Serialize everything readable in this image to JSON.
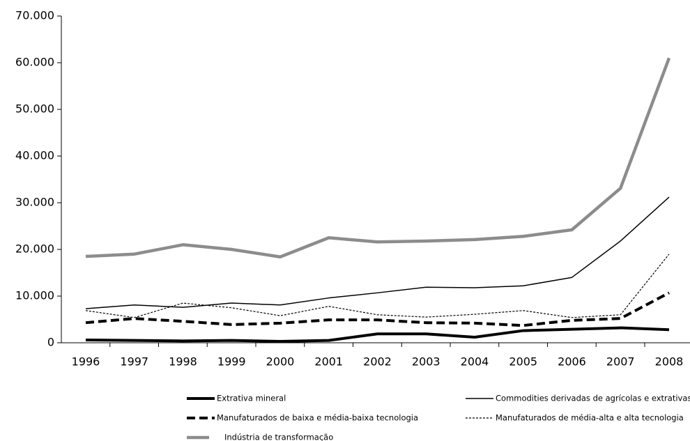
{
  "chart_data": {
    "type": "line",
    "categories": [
      "1996",
      "1997",
      "1998",
      "1999",
      "2000",
      "2001",
      "2002",
      "2003",
      "2004",
      "2005",
      "2006",
      "2007",
      "2008"
    ],
    "ylim": [
      0,
      70000
    ],
    "yticks": [
      0,
      {
        "value": 10000,
        "label": "10.000"
      },
      {
        "value": 20000,
        "label": "20.000"
      },
      {
        "value": 30000,
        "label": "30.000"
      },
      {
        "value": 40000,
        "label": "40.000"
      },
      {
        "value": 50000,
        "label": "50.000"
      },
      {
        "value": 60000,
        "label": "60.000"
      },
      {
        "value": 70000,
        "label": "70.000"
      }
    ],
    "grid": false,
    "series": [
      {
        "name": "Extrativa mineral",
        "color": "#000000",
        "line_width": 4,
        "line_style": "solid",
        "values": [
          600,
          500,
          400,
          500,
          300,
          500,
          1900,
          1900,
          1200,
          2600,
          2900,
          3200,
          2800
        ]
      },
      {
        "name": "Commodities derivadas de agrícolas e extrativas",
        "color": "#000000",
        "line_width": 1.5,
        "line_style": "solid",
        "values": [
          7300,
          8100,
          7600,
          8500,
          8100,
          9600,
          10700,
          11900,
          11800,
          12200,
          14000,
          21800,
          31200
        ]
      },
      {
        "name": "Manufaturados de baixa e média-baixa tecnologia",
        "color": "#000000",
        "line_width": 4,
        "line_style": "dashed",
        "values": [
          4300,
          5200,
          4600,
          3900,
          4200,
          4900,
          4900,
          4300,
          4200,
          3700,
          4800,
          5200,
          10700
        ]
      },
      {
        "name": "Manufaturados de média-alta e alta tecnologia",
        "color": "#000000",
        "line_width": 1.2,
        "line_style": "dotted",
        "values": [
          6900,
          5400,
          8500,
          7500,
          5800,
          7800,
          6000,
          5500,
          6100,
          6900,
          5400,
          6000,
          19000
        ]
      },
      {
        "name": "Indústria de transformação",
        "color": "#8c8c8c",
        "line_width": 4.5,
        "line_style": "solid",
        "values": [
          18500,
          19000,
          21000,
          20000,
          18400,
          22500,
          21600,
          21800,
          22100,
          22800,
          24200,
          33100,
          61000
        ]
      }
    ]
  }
}
